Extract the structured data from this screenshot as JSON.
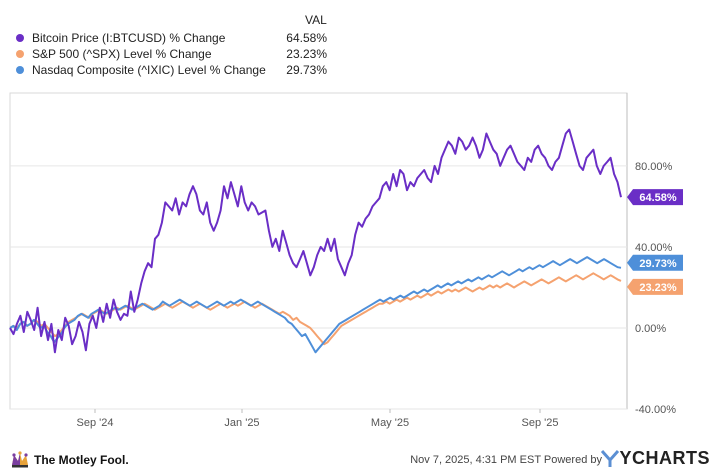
{
  "header": {
    "val_label": "VAL"
  },
  "legend": [
    {
      "name": "Bitcoin Price (I:BTCUSD) % Change",
      "value": "64.58%",
      "color": "#6a2ec6"
    },
    {
      "name": "S&P 500 (^SPX) Level % Change",
      "value": "23.23%",
      "color": "#f5a26f"
    },
    {
      "name": "Nasdaq Composite (^IXIC) Level % Change",
      "value": "29.73%",
      "color": "#4e8fd9"
    }
  ],
  "chart_data": {
    "type": "line",
    "x_tick_labels": [
      "Sep '24",
      "Jan '25",
      "May '25",
      "Sep '25"
    ],
    "y_tick_labels": [
      "80.00%",
      "40.00%",
      "0.00%",
      "-40.00%"
    ],
    "y_ticks": [
      80,
      40,
      0,
      -40
    ],
    "ylim": [
      -40,
      116
    ],
    "grid": "horizontal",
    "series": [
      {
        "name": "Bitcoin Price (I:BTCUSD) % Change",
        "color": "#6a2ec6",
        "end_label": "64.58%",
        "values": [
          0,
          -3,
          2,
          6,
          -2,
          8,
          4,
          -1,
          10,
          -4,
          3,
          -6,
          2,
          -12,
          -1,
          -6,
          5,
          1,
          -8,
          -4,
          3,
          -2,
          -11,
          2,
          6,
          0,
          10,
          3,
          12,
          5,
          14,
          8,
          4,
          7,
          6,
          18,
          8,
          14,
          22,
          28,
          32,
          30,
          44,
          46,
          52,
          62,
          60,
          58,
          64,
          56,
          62,
          60,
          66,
          70,
          66,
          58,
          56,
          62,
          52,
          48,
          52,
          58,
          70,
          64,
          72,
          66,
          60,
          70,
          62,
          58,
          62,
          60,
          56,
          57,
          58,
          48,
          40,
          44,
          38,
          48,
          42,
          36,
          32,
          30,
          34,
          38,
          32,
          26,
          30,
          36,
          40,
          38,
          44,
          38,
          44,
          34,
          30,
          26,
          32,
          36,
          46,
          52,
          50,
          54,
          56,
          60,
          62,
          64,
          70,
          72,
          68,
          76,
          70,
          78,
          76,
          68,
          72,
          70,
          74,
          76,
          78,
          74,
          72,
          80,
          76,
          84,
          88,
          92,
          90,
          86,
          94,
          92,
          88,
          90,
          94,
          90,
          84,
          88,
          96,
          92,
          88,
          86,
          80,
          84,
          88,
          90,
          86,
          82,
          80,
          78,
          84,
          82,
          88,
          90,
          86,
          84,
          80,
          78,
          82,
          84,
          90,
          96,
          98,
          92,
          86,
          80,
          78,
          84,
          86,
          88,
          80,
          76,
          80,
          82,
          84,
          76,
          72,
          64.58
        ]
      },
      {
        "name": "S&P 500 (^SPX) Level % Change",
        "color": "#f5a26f",
        "end_label": "23.23%",
        "values": [
          0,
          1,
          0,
          2,
          3,
          1,
          2,
          4,
          3,
          1,
          2,
          0,
          -2,
          -4,
          -3,
          -1,
          1,
          3,
          4,
          5,
          6,
          7,
          6,
          5,
          7,
          8,
          9,
          8,
          7,
          8,
          9,
          10,
          9,
          10,
          11,
          10,
          9,
          10,
          11,
          12,
          11,
          10,
          9,
          10,
          11,
          12,
          11,
          10,
          11,
          12,
          13,
          12,
          11,
          10,
          11,
          12,
          11,
          10,
          9,
          10,
          11,
          12,
          11,
          10,
          11,
          12,
          11,
          12,
          13,
          12,
          11,
          10,
          11,
          12,
          11,
          10,
          9,
          8,
          7,
          8,
          7,
          6,
          4,
          5,
          3,
          2,
          1,
          0,
          -2,
          -4,
          -6,
          -8,
          -7,
          -5,
          -3,
          -1,
          1,
          2,
          3,
          4,
          5,
          6,
          7,
          8,
          9,
          10,
          11,
          12,
          12,
          13,
          12,
          13,
          14,
          13,
          14,
          15,
          14,
          15,
          16,
          15,
          16,
          17,
          16,
          17,
          18,
          17,
          18,
          19,
          18,
          19,
          18,
          19,
          20,
          19,
          18,
          19,
          20,
          19,
          20,
          21,
          20,
          21,
          20,
          21,
          22,
          21,
          20,
          21,
          22,
          23,
          22,
          21,
          22,
          23,
          24,
          23,
          22,
          23,
          24,
          25,
          24,
          23,
          24,
          25,
          26,
          25,
          24,
          25,
          26,
          27,
          26,
          25,
          24,
          25,
          26,
          25,
          24,
          23.23
        ]
      },
      {
        "name": "Nasdaq Composite (^IXIC) Level % Change",
        "color": "#4e8fd9",
        "end_label": "29.73%",
        "values": [
          0,
          1,
          -1,
          2,
          3,
          1,
          2,
          4,
          2,
          0,
          1,
          -2,
          -4,
          -7,
          -5,
          -3,
          0,
          2,
          3,
          4,
          6,
          7,
          6,
          5,
          7,
          8,
          9,
          8,
          7,
          8,
          9,
          10,
          9,
          10,
          11,
          10,
          9,
          10,
          11,
          12,
          11,
          10,
          9,
          10,
          11,
          13,
          12,
          11,
          12,
          13,
          14,
          13,
          12,
          11,
          12,
          13,
          12,
          11,
          10,
          11,
          12,
          13,
          12,
          11,
          12,
          13,
          12,
          13,
          14,
          13,
          12,
          11,
          12,
          13,
          12,
          11,
          10,
          9,
          8,
          7,
          6,
          5,
          3,
          2,
          0,
          -2,
          -4,
          -3,
          -6,
          -9,
          -12,
          -10,
          -8,
          -6,
          -4,
          -2,
          0,
          2,
          3,
          4,
          5,
          6,
          7,
          8,
          9,
          10,
          11,
          12,
          13,
          14,
          13,
          14,
          15,
          14,
          15,
          16,
          15,
          16,
          17,
          18,
          17,
          18,
          19,
          18,
          19,
          20,
          21,
          20,
          21,
          22,
          21,
          22,
          23,
          22,
          23,
          24,
          23,
          24,
          25,
          24,
          25,
          26,
          25,
          26,
          27,
          28,
          27,
          26,
          27,
          28,
          29,
          28,
          29,
          30,
          29,
          30,
          31,
          30,
          31,
          32,
          33,
          32,
          31,
          32,
          33,
          34,
          33,
          32,
          33,
          34,
          35,
          34,
          33,
          32,
          33,
          34,
          33,
          32,
          31,
          30,
          29.73
        ]
      }
    ]
  },
  "footer": {
    "brand": "The Motley Fool.",
    "timestamp": "Nov 7, 2025, 4:31 PM EST  Powered by",
    "ycharts": "YCHARTS"
  }
}
